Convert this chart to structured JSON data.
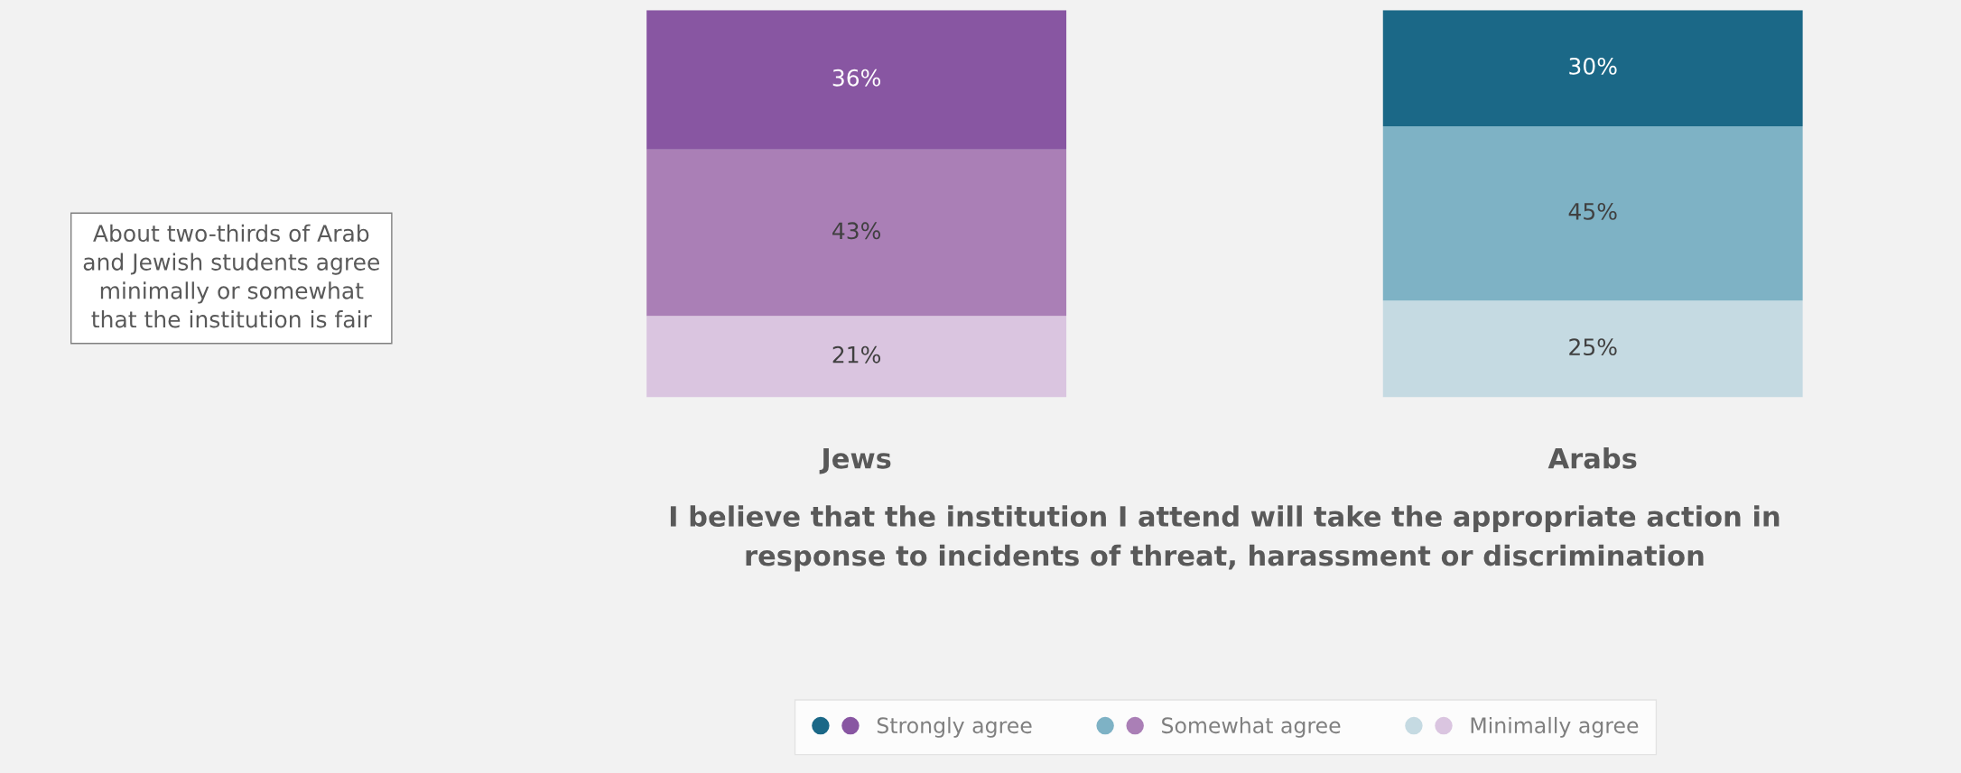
{
  "chart_data": {
    "type": "bar",
    "stacked": true,
    "categories": [
      "Jews",
      "Arabs"
    ],
    "xlabel": "I believe that the institution I attend will take the appropriate action in\nresponse to incidents of threat, harassment or discrimination",
    "series": [
      {
        "name": "Minimally agree",
        "colors": [
          "#dac5e0",
          "#c5dae2"
        ],
        "values": [
          21,
          25
        ],
        "value_labels": [
          "21%",
          "25%"
        ]
      },
      {
        "name": "Somewhat agree",
        "colors": [
          "#aa7fb6",
          "#7eb2c5"
        ],
        "values": [
          43,
          45
        ],
        "value_labels": [
          "43%",
          "45%"
        ]
      },
      {
        "name": "Strongly agree",
        "colors": [
          "#8856a2",
          "#1b6887"
        ],
        "values": [
          36,
          30
        ],
        "value_labels": [
          "36%",
          "30%"
        ]
      }
    ],
    "legend": "bottom",
    "annotations": [
      "About two-thirds of Arab\nand Jewish students agree\nminimally or somewhat\nthat the institution is fair"
    ]
  }
}
